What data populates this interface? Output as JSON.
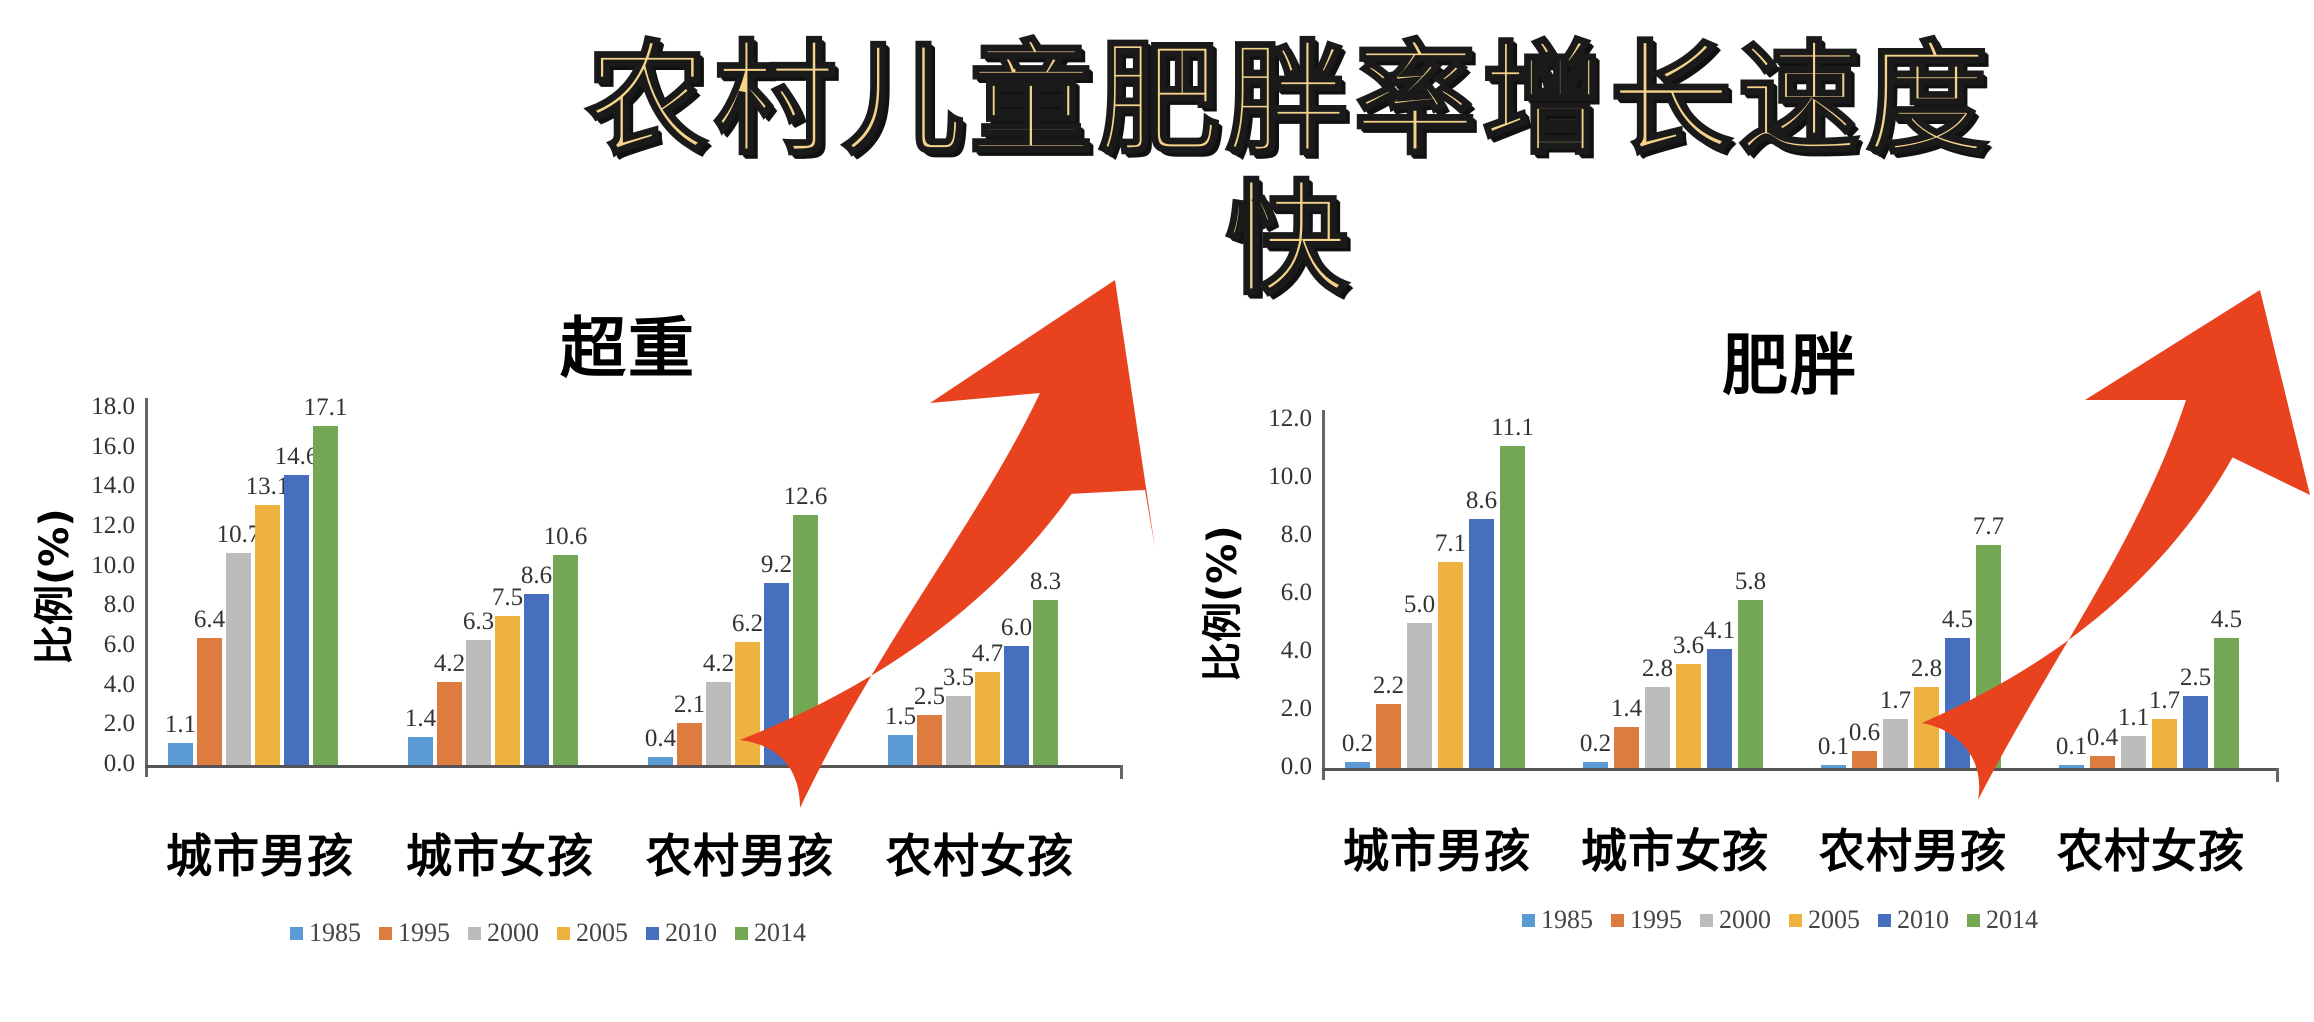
{
  "title": "农村儿童肥胖率增长速度快",
  "colors": {
    "1985": "#5b9bd5",
    "1995": "#dc7d3f",
    "2000": "#bcbcbc",
    "2005": "#eeb33f",
    "2010": "#4670bd",
    "2014": "#73a754",
    "arrow": "#e8421f",
    "title_fill": "#f6d38a"
  },
  "legend": [
    "1985",
    "1995",
    "2000",
    "2005",
    "2010",
    "2014"
  ],
  "categories": [
    "城市男孩",
    "城市女孩",
    "农村男孩",
    "农村女孩"
  ],
  "panels": [
    {
      "title": "超重",
      "ylabel": "比例(%)",
      "ticks": [
        "0.0",
        "2.0",
        "4.0",
        "6.0",
        "8.0",
        "10.0",
        "12.0",
        "14.0",
        "16.0",
        "18.0"
      ]
    },
    {
      "title": "肥胖",
      "ylabel": "比例(%)",
      "ticks": [
        "0.0",
        "2.0",
        "4.0",
        "6.0",
        "8.0",
        "10.0",
        "12.0"
      ]
    }
  ],
  "chart_data": [
    {
      "type": "bar",
      "title": "超重",
      "xlabel": "",
      "ylabel": "比例(%)",
      "ylim": [
        0,
        18
      ],
      "yticks": [
        0,
        2,
        4,
        6,
        8,
        10,
        12,
        14,
        16,
        18
      ],
      "categories": [
        "城市男孩",
        "城市女孩",
        "农村男孩",
        "农村女孩"
      ],
      "legend_position": "bottom",
      "grid": false,
      "series": [
        {
          "name": "1985",
          "values": [
            1.1,
            1.4,
            0.4,
            1.5
          ]
        },
        {
          "name": "1995",
          "values": [
            6.4,
            4.2,
            2.1,
            2.5
          ]
        },
        {
          "name": "2000",
          "values": [
            10.7,
            6.3,
            4.2,
            3.5
          ]
        },
        {
          "name": "2005",
          "values": [
            13.1,
            7.5,
            6.2,
            4.7
          ]
        },
        {
          "name": "2010",
          "values": [
            14.6,
            8.6,
            9.2,
            6.0
          ]
        },
        {
          "name": "2014",
          "values": [
            17.1,
            10.6,
            12.6,
            8.3
          ]
        }
      ],
      "annotations": [
        "red upward curved arrow"
      ]
    },
    {
      "type": "bar",
      "title": "肥胖",
      "xlabel": "",
      "ylabel": "比例(%)",
      "ylim": [
        0,
        12
      ],
      "yticks": [
        0,
        2,
        4,
        6,
        8,
        10,
        12
      ],
      "categories": [
        "城市男孩",
        "城市女孩",
        "农村男孩",
        "农村女孩"
      ],
      "legend_position": "bottom",
      "grid": false,
      "series": [
        {
          "name": "1985",
          "values": [
            0.2,
            0.2,
            0.1,
            0.1
          ]
        },
        {
          "name": "1995",
          "values": [
            2.2,
            1.4,
            0.6,
            0.4
          ]
        },
        {
          "name": "2000",
          "values": [
            5.0,
            2.8,
            1.7,
            1.1
          ]
        },
        {
          "name": "2005",
          "values": [
            7.1,
            3.6,
            2.8,
            1.7
          ]
        },
        {
          "name": "2010",
          "values": [
            8.6,
            4.1,
            4.5,
            2.5
          ]
        },
        {
          "name": "2014",
          "values": [
            11.1,
            5.8,
            7.7,
            4.5
          ]
        }
      ],
      "annotations": [
        "red upward curved arrow"
      ]
    }
  ]
}
